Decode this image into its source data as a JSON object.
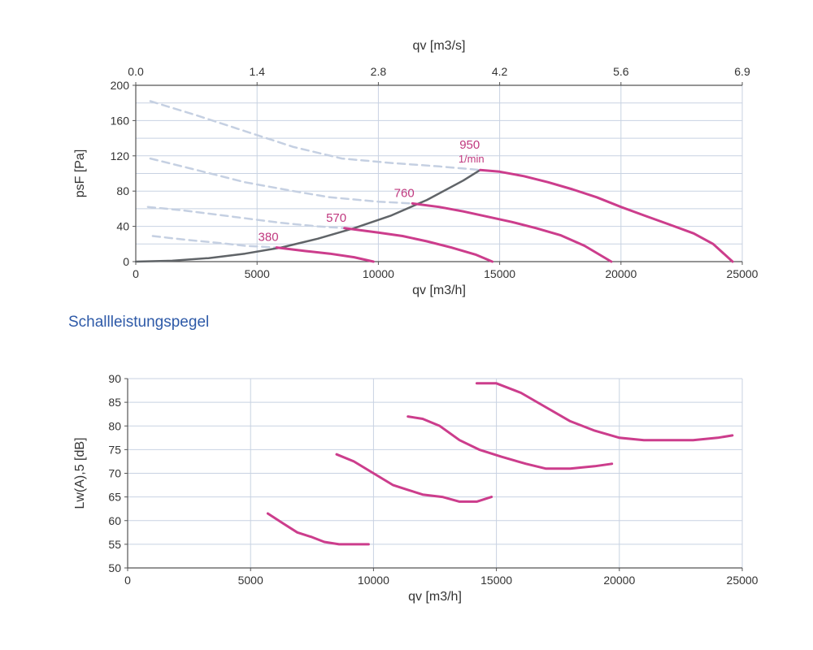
{
  "section_heading": "Schallleistungspegel",
  "colors": {
    "curve": "#cc3d8c",
    "label": "#c0397f",
    "system_line": "#606468",
    "dashed": "#c5d0e2",
    "grid": "#c8d2e2",
    "axis_text": "#333333"
  },
  "chart_data": [
    {
      "type": "line",
      "title": "",
      "xlabel": "qv [m3/h]",
      "ylabel": "psF [Pa]",
      "x2label": "qv [m3/s]",
      "xlim": [
        0,
        25000
      ],
      "ylim": [
        0,
        200
      ],
      "xticks": [
        "0",
        "5000",
        "10000",
        "15000",
        "20000",
        "25000"
      ],
      "yticks": [
        "0",
        "40",
        "80",
        "120",
        "160",
        "200"
      ],
      "x2ticks": [
        "0.0",
        "1.4",
        "2.8",
        "4.2",
        "5.6",
        "6.9"
      ],
      "grid": true,
      "speed_unit": "1/min",
      "series": [
        {
          "name": "380",
          "role": "operating",
          "x": [
            5800,
            7000,
            8000,
            9000,
            9800
          ],
          "y": [
            16,
            12,
            9,
            5,
            0
          ]
        },
        {
          "name": "570",
          "role": "operating",
          "x": [
            8600,
            10000,
            11000,
            12000,
            13000,
            14000,
            14700
          ],
          "y": [
            38,
            33,
            29,
            23,
            16,
            8,
            0
          ]
        },
        {
          "name": "760",
          "role": "operating",
          "x": [
            11400,
            12500,
            13500,
            14500,
            15500,
            16500,
            17500,
            18500,
            19600
          ],
          "y": [
            66,
            62,
            57,
            51,
            45,
            38,
            30,
            18,
            0
          ]
        },
        {
          "name": "950",
          "role": "operating",
          "x": [
            14200,
            15000,
            16000,
            17000,
            18000,
            19000,
            20000,
            21000,
            22000,
            23000,
            23800,
            24600
          ],
          "y": [
            104,
            102,
            97,
            90,
            82,
            73,
            62,
            52,
            42,
            32,
            20,
            0
          ]
        },
        {
          "name": "",
          "role": "system",
          "x": [
            0,
            1500,
            3000,
            4500,
            6000,
            7500,
            9000,
            10500,
            12000,
            13500,
            14200
          ],
          "y": [
            0,
            1,
            4,
            9,
            16,
            26,
            38,
            52,
            70,
            92,
            104
          ]
        },
        {
          "name": "",
          "role": "dashed",
          "x": [
            700,
            2000,
            3500,
            4500,
            5800
          ],
          "y": [
            29,
            25,
            21,
            18,
            16
          ]
        },
        {
          "name": "",
          "role": "dashed",
          "x": [
            500,
            2000,
            4000,
            6000,
            7500,
            8600
          ],
          "y": [
            62,
            58,
            51,
            44,
            40,
            38
          ]
        },
        {
          "name": "",
          "role": "dashed",
          "x": [
            600,
            2500,
            4500,
            6500,
            8000,
            10000,
            11400
          ],
          "y": [
            117,
            104,
            90,
            80,
            73,
            68,
            66
          ]
        },
        {
          "name": "",
          "role": "dashed",
          "x": [
            600,
            2500,
            4500,
            6500,
            8500,
            10500,
            12500,
            14200
          ],
          "y": [
            182,
            166,
            148,
            130,
            117,
            112,
            108,
            104
          ]
        }
      ]
    },
    {
      "type": "line",
      "title": "",
      "xlabel": "qv [m3/h]",
      "ylabel": "Lw(A),5 [dB]",
      "xlim": [
        0,
        25000
      ],
      "ylim": [
        50,
        90
      ],
      "xticks": [
        "0",
        "5000",
        "10000",
        "15000",
        "20000",
        "25000"
      ],
      "yticks": [
        "50",
        "55",
        "60",
        "65",
        "70",
        "75",
        "80",
        "85",
        "90"
      ],
      "grid": true,
      "series": [
        {
          "x": [
            5700,
            6300,
            6900,
            7500,
            8000,
            8600,
            9000,
            9800
          ],
          "y": [
            61.5,
            59.5,
            57.5,
            56.5,
            55.5,
            55,
            55,
            55
          ]
        },
        {
          "x": [
            8500,
            9200,
            10000,
            10800,
            11400,
            12000,
            12800,
            13500,
            14200,
            14800
          ],
          "y": [
            74,
            72.5,
            70,
            67.5,
            66.5,
            65.5,
            65,
            64,
            64,
            65
          ]
        },
        {
          "x": [
            11400,
            12000,
            12700,
            13500,
            14300,
            15200,
            16200,
            17000,
            18000,
            19000,
            19700
          ],
          "y": [
            82,
            81.5,
            80,
            77,
            75,
            73.5,
            72,
            71,
            71,
            71.5,
            72
          ]
        },
        {
          "x": [
            14200,
            15000,
            16000,
            17000,
            18000,
            19000,
            20000,
            21000,
            22000,
            23000,
            24000,
            24600
          ],
          "y": [
            89,
            89,
            87,
            84,
            81,
            79,
            77.5,
            77,
            77,
            77,
            77.5,
            78
          ]
        }
      ]
    }
  ]
}
